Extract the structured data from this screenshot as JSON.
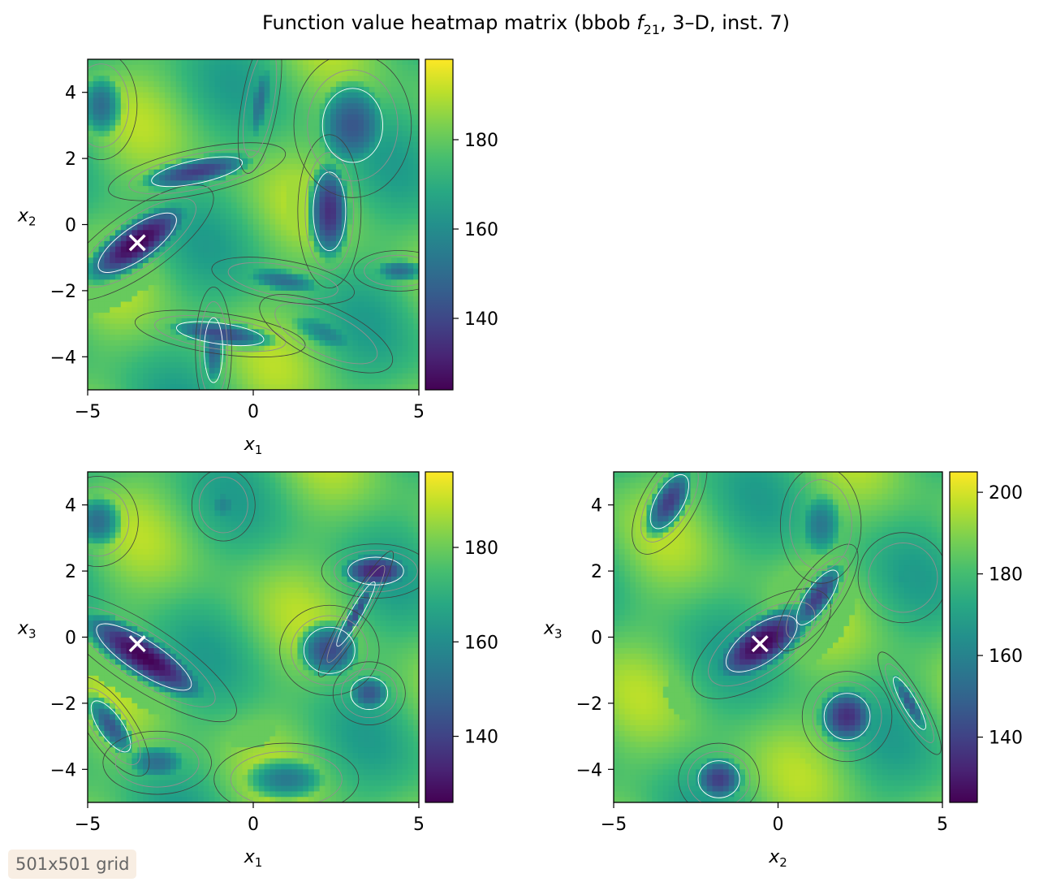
{
  "figure": {
    "title_prefix": "Function value heatmap matrix (bbob ",
    "title_func": "f",
    "title_sub": "21",
    "title_suffix": ", 3–D, inst. 7)",
    "grid_label": "501x501 grid"
  },
  "chart_data": [
    {
      "type": "heatmap",
      "xvar": "x",
      "xsub": "1",
      "yvar": "x",
      "ysub": "2",
      "xlim": [
        -5,
        5
      ],
      "ylim": [
        -5,
        5
      ],
      "xticks": [
        -5,
        0,
        5
      ],
      "yticks": [
        -4,
        -2,
        0,
        2,
        4
      ],
      "colorbar_range": [
        124,
        198
      ],
      "colorbar_ticks": [
        140,
        160,
        180
      ],
      "colormap": "viridis",
      "optimum": {
        "x": -3.5,
        "y": -0.55,
        "marker": "×"
      },
      "basins": [
        {
          "x": -3.5,
          "y": -0.55,
          "rx": 2.0,
          "ry": 0.7,
          "angle": 35,
          "depth": 1.0
        },
        {
          "x": -1.7,
          "y": 1.6,
          "rx": 2.0,
          "ry": 0.5,
          "angle": 12,
          "depth": 0.8
        },
        {
          "x": 2.3,
          "y": 0.4,
          "rx": 0.7,
          "ry": 1.7,
          "angle": 0,
          "depth": 0.85
        },
        {
          "x": 3.0,
          "y": 3.0,
          "rx": 1.3,
          "ry": 1.6,
          "angle": 0,
          "depth": 0.7
        },
        {
          "x": 0.2,
          "y": 3.7,
          "rx": 0.4,
          "ry": 1.6,
          "angle": -10,
          "depth": 0.6
        },
        {
          "x": -1.0,
          "y": -3.3,
          "rx": 1.9,
          "ry": 0.45,
          "angle": -8,
          "depth": 0.75
        },
        {
          "x": -1.2,
          "y": -3.8,
          "rx": 0.4,
          "ry": 1.4,
          "angle": 0,
          "depth": 0.65
        },
        {
          "x": 0.9,
          "y": -1.7,
          "rx": 1.6,
          "ry": 0.45,
          "angle": -10,
          "depth": 0.6
        },
        {
          "x": -4.6,
          "y": 3.6,
          "rx": 0.8,
          "ry": 1.2,
          "angle": 0,
          "depth": 0.6
        },
        {
          "x": 4.4,
          "y": -1.4,
          "rx": 1.0,
          "ry": 0.45,
          "angle": 0,
          "depth": 0.6
        },
        {
          "x": 2.2,
          "y": -3.3,
          "rx": 1.6,
          "ry": 0.6,
          "angle": -25,
          "depth": 0.5
        }
      ]
    },
    {
      "type": "heatmap",
      "xvar": "x",
      "xsub": "1",
      "yvar": "x",
      "ysub": "3",
      "xlim": [
        -5,
        5
      ],
      "ylim": [
        -5,
        5
      ],
      "xticks": [
        -5,
        0,
        5
      ],
      "yticks": [
        -4,
        -2,
        0,
        2,
        4
      ],
      "colorbar_range": [
        126,
        196
      ],
      "colorbar_ticks": [
        140,
        160,
        180
      ],
      "colormap": "viridis",
      "optimum": {
        "x": -3.5,
        "y": -0.2,
        "marker": "×"
      },
      "basins": [
        {
          "x": -3.3,
          "y": -0.6,
          "rx": 2.4,
          "ry": 0.7,
          "angle": -33,
          "depth": 1.0
        },
        {
          "x": 3.7,
          "y": 2.0,
          "rx": 1.2,
          "ry": 0.6,
          "angle": 0,
          "depth": 0.9
        },
        {
          "x": 3.1,
          "y": 0.7,
          "rx": 1.6,
          "ry": 0.25,
          "angle": 60,
          "depth": 0.75
        },
        {
          "x": 2.3,
          "y": -0.4,
          "rx": 1.1,
          "ry": 1.0,
          "angle": 0,
          "depth": 0.75
        },
        {
          "x": 3.5,
          "y": -1.7,
          "rx": 0.8,
          "ry": 0.7,
          "angle": 0,
          "depth": 0.7
        },
        {
          "x": -4.7,
          "y": 3.5,
          "rx": 0.9,
          "ry": 1.0,
          "angle": 0,
          "depth": 0.6
        },
        {
          "x": -4.3,
          "y": -2.7,
          "rx": 0.5,
          "ry": 1.3,
          "angle": 35,
          "depth": 0.7
        },
        {
          "x": -2.9,
          "y": -3.8,
          "rx": 1.2,
          "ry": 0.7,
          "angle": 0,
          "depth": 0.6
        },
        {
          "x": 1.0,
          "y": -4.3,
          "rx": 1.6,
          "ry": 0.8,
          "angle": 0,
          "depth": 0.55
        },
        {
          "x": -0.9,
          "y": 4.0,
          "rx": 0.7,
          "ry": 0.8,
          "angle": 0,
          "depth": 0.5
        }
      ]
    },
    {
      "type": "heatmap",
      "xvar": "x",
      "xsub": "2",
      "yvar": "x",
      "ysub": "3",
      "xlim": [
        -5,
        5
      ],
      "ylim": [
        -5,
        5
      ],
      "xticks": [
        -5,
        0,
        5
      ],
      "yticks": [
        -4,
        -2,
        0,
        2,
        4
      ],
      "colorbar_range": [
        124,
        205
      ],
      "colorbar_ticks": [
        140,
        160,
        180,
        200
      ],
      "colormap": "viridis",
      "optimum": {
        "x": -0.55,
        "y": -0.2,
        "marker": "×"
      },
      "basins": [
        {
          "x": -0.5,
          "y": -0.2,
          "rx": 1.8,
          "ry": 0.8,
          "angle": 35,
          "depth": 1.0
        },
        {
          "x": 1.2,
          "y": 1.2,
          "rx": 0.5,
          "ry": 1.4,
          "angle": -35,
          "depth": 0.8
        },
        {
          "x": 2.1,
          "y": -2.4,
          "rx": 1.0,
          "ry": 1.0,
          "angle": 0,
          "depth": 0.85
        },
        {
          "x": -1.8,
          "y": -4.3,
          "rx": 0.9,
          "ry": 0.8,
          "angle": 0,
          "depth": 0.8
        },
        {
          "x": -3.3,
          "y": 4.1,
          "rx": 0.6,
          "ry": 1.3,
          "angle": -30,
          "depth": 0.8
        },
        {
          "x": 4.0,
          "y": -2.0,
          "rx": 0.3,
          "ry": 1.3,
          "angle": 30,
          "depth": 0.7
        },
        {
          "x": 1.3,
          "y": 3.4,
          "rx": 0.9,
          "ry": 1.3,
          "angle": 0,
          "depth": 0.55
        },
        {
          "x": 3.8,
          "y": 1.8,
          "rx": 1.0,
          "ry": 1.0,
          "angle": 0,
          "depth": 0.4
        }
      ]
    }
  ]
}
